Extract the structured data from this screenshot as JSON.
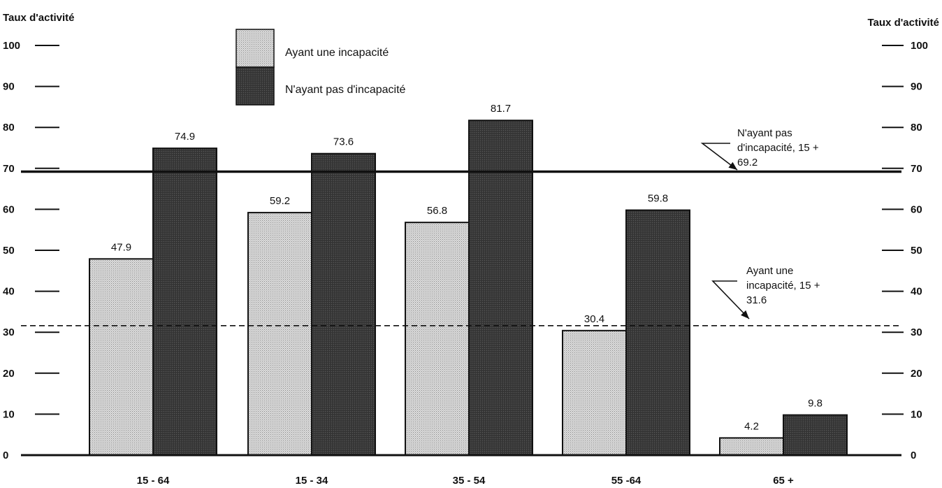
{
  "chart_data": {
    "type": "bar",
    "title": "",
    "ylabel_left": "Taux d'activité",
    "ylabel_right": "Taux d'activité",
    "ylim": [
      0,
      100
    ],
    "yticks": [
      0,
      10,
      20,
      30,
      40,
      50,
      60,
      70,
      80,
      90,
      100
    ],
    "categories": [
      "15 - 64",
      "15 - 34",
      "35 - 54",
      "55 -64",
      "65 +"
    ],
    "series": [
      {
        "name": "Ayant une incapacité",
        "values": [
          47.9,
          59.2,
          56.8,
          30.4,
          4.2
        ],
        "color": "#d0d0d0"
      },
      {
        "name": "N'ayant pas d'incapacité",
        "values": [
          74.9,
          73.6,
          81.7,
          59.8,
          9.8
        ],
        "color": "#3c3c3c"
      }
    ],
    "value_labels": [
      [
        "47.9",
        "59.2",
        "56.8",
        "30.4",
        "4.2"
      ],
      [
        "74.9",
        "73.6",
        "81.7",
        "59.8",
        "9.8"
      ]
    ],
    "reference_lines": [
      {
        "name": "N'ayant pas d'incapacité, 15 +",
        "value": 69.2,
        "style": "solid",
        "label_lines": [
          "N'ayant pas",
          "d'incapacité, 15 +",
          "69.2"
        ]
      },
      {
        "name": "Ayant une incapacité, 15 +",
        "value": 31.6,
        "style": "dashed",
        "label_lines": [
          "Ayant une",
          "incapacité, 15 +",
          "31.6"
        ]
      }
    ],
    "legend": {
      "position": "top-center"
    },
    "grid": false
  }
}
